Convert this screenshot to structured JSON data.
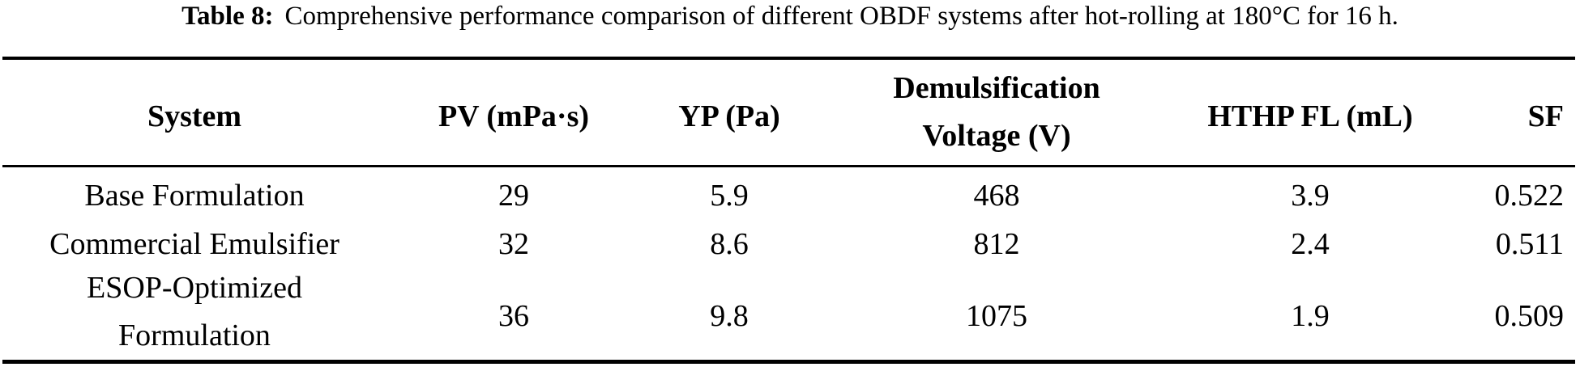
{
  "caption": {
    "label": "Table 8:",
    "text": "Comprehensive performance comparison of different OBDF systems after hot-rolling at 180°C for 16 h."
  },
  "table": {
    "columns": [
      {
        "id": "system",
        "label": "System"
      },
      {
        "id": "pv",
        "label": "PV (mPa·s)"
      },
      {
        "id": "yp",
        "label": "YP (Pa)"
      },
      {
        "id": "dv",
        "label": "Demulsification Voltage (V)",
        "line1": "Demulsification",
        "line2": "Voltage (V)"
      },
      {
        "id": "fl",
        "label": "HTHP FL (mL)"
      },
      {
        "id": "sf",
        "label": "SF"
      }
    ],
    "rows": [
      {
        "system": "Base Formulation",
        "pv": "29",
        "yp": "5.9",
        "dv": "468",
        "fl": "3.9",
        "sf": "0.522"
      },
      {
        "system": "Commercial Emulsifier",
        "pv": "32",
        "yp": "8.6",
        "dv": "812",
        "fl": "2.4",
        "sf": "0.511"
      },
      {
        "system": "ESOP-Optimized Formulation",
        "system_lines": [
          "ESOP-Optimized",
          "Formulation"
        ],
        "pv": "36",
        "yp": "9.8",
        "dv": "1075",
        "fl": "1.9",
        "sf": "0.509"
      }
    ]
  },
  "chart_data": {
    "type": "table",
    "title": "Table 8: Comprehensive performance comparison of different OBDF systems after hot-rolling at 180°C for 16 h.",
    "columns": [
      "System",
      "PV (mPa·s)",
      "YP (Pa)",
      "Demulsification Voltage (V)",
      "HTHP FL (mL)",
      "SF"
    ],
    "rows": [
      [
        "Base Formulation",
        29,
        5.9,
        468,
        3.9,
        0.522
      ],
      [
        "Commercial Emulsifier",
        32,
        8.6,
        812,
        2.4,
        0.511
      ],
      [
        "ESOP-Optimized Formulation",
        36,
        9.8,
        1075,
        1.9,
        0.509
      ]
    ]
  }
}
